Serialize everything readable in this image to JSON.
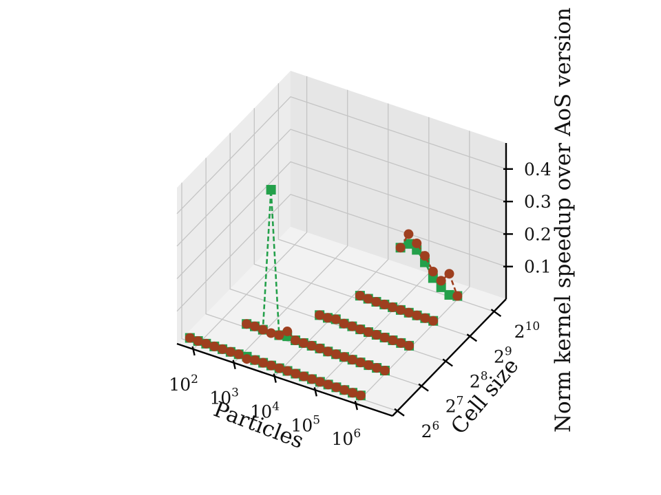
{
  "chart_data": {
    "type": "scatter",
    "subtype": "3d-line-scatter",
    "title": "",
    "xlabel": "Particles",
    "ylabel": "Cell size",
    "zlabel": "Norm kernel speedup over AoS version",
    "x_scale": "log10",
    "x_ticks": [
      {
        "base": "10",
        "exp": "2"
      },
      {
        "base": "10",
        "exp": "3"
      },
      {
        "base": "10",
        "exp": "4"
      },
      {
        "base": "10",
        "exp": "5"
      },
      {
        "base": "10",
        "exp": "6"
      }
    ],
    "y_scale": "log2",
    "y_ticks": [
      {
        "base": "2",
        "exp": "6"
      },
      {
        "base": "2",
        "exp": "7"
      },
      {
        "base": "2",
        "exp": "8"
      },
      {
        "base": "2",
        "exp": "9"
      },
      {
        "base": "2",
        "exp": "10"
      }
    ],
    "z_ticks": [
      "0.1",
      "0.2",
      "0.3",
      "0.4"
    ],
    "zlim": [
      0.0,
      0.48
    ],
    "grid": true,
    "x": [
      63,
      100,
      158,
      251,
      398,
      631,
      1000,
      1585,
      2512,
      3981,
      6310,
      10000,
      15849,
      25119,
      39811,
      63096,
      100000,
      158489,
      251189,
      398107,
      630957,
      1000000
    ],
    "series": [
      {
        "marker": "square",
        "color": "#23a04a",
        "cell_sizes": [
          64,
          128,
          256,
          512,
          1024
        ],
        "values": [
          [
            0.011,
            0.01,
            0.01,
            0.01,
            0.01,
            0.01,
            0.011,
            0.012,
            0.01,
            0.01,
            0.01,
            0.01,
            0.01,
            0.01,
            0.01,
            0.01,
            0.01,
            0.01,
            0.01,
            0.01,
            0.01,
            0.01
          ],
          [
            null,
            null,
            null,
            null,
            0.011,
            0.012,
            0.01,
            0.449,
            0.01,
            0.015,
            0.011,
            0.011,
            0.011,
            0.011,
            0.01,
            0.01,
            0.01,
            0.01,
            0.01,
            0.01,
            0.01,
            0.01
          ],
          [
            null,
            null,
            null,
            null,
            null,
            null,
            null,
            null,
            null,
            null,
            0.012,
            0.012,
            0.016,
            0.011,
            0.011,
            0.01,
            0.01,
            0.01,
            0.01,
            0.01,
            0.01,
            0.01
          ],
          [
            null,
            null,
            null,
            null,
            null,
            null,
            null,
            null,
            null,
            null,
            null,
            null,
            0.012,
            0.011,
            0.01,
            0.01,
            0.01,
            0.01,
            0.01,
            0.01,
            0.01,
            0.01
          ],
          [
            null,
            null,
            null,
            null,
            null,
            null,
            null,
            null,
            null,
            null,
            null,
            null,
            null,
            null,
            0.1,
            0.12,
            0.11,
            0.08,
            0.04,
            0.02,
            0.005,
            0.01
          ]
        ]
      },
      {
        "marker": "circle",
        "color": "#9e3f1f",
        "cell_sizes": [
          64,
          128,
          256,
          512,
          1024
        ],
        "values": [
          [
            0.011,
            0.01,
            0.01,
            0.01,
            0.01,
            0.01,
            0.011,
            0.005,
            0.01,
            0.01,
            0.01,
            0.01,
            0.01,
            0.01,
            0.01,
            0.01,
            0.01,
            0.01,
            0.01,
            0.01,
            0.01,
            0.01
          ],
          [
            null,
            null,
            null,
            null,
            0.011,
            0.012,
            0.01,
            0.008,
            0.01,
            0.03,
            0.011,
            0.011,
            0.011,
            0.011,
            0.01,
            0.01,
            0.01,
            0.01,
            0.01,
            0.01,
            0.01,
            0.01
          ],
          [
            null,
            null,
            null,
            null,
            null,
            null,
            null,
            null,
            null,
            null,
            0.012,
            0.012,
            0.016,
            0.011,
            0.011,
            0.01,
            0.01,
            0.01,
            0.01,
            0.01,
            0.01,
            0.01
          ],
          [
            null,
            null,
            null,
            null,
            null,
            null,
            null,
            null,
            null,
            null,
            null,
            null,
            0.012,
            0.011,
            0.01,
            0.01,
            0.01,
            0.01,
            0.01,
            0.01,
            0.01,
            0.01
          ],
          [
            null,
            null,
            null,
            null,
            null,
            null,
            null,
            null,
            null,
            null,
            null,
            null,
            null,
            null,
            0.1,
            0.15,
            0.13,
            0.1,
            0.06,
            0.04,
            0.07,
            0.01
          ]
        ]
      }
    ]
  }
}
